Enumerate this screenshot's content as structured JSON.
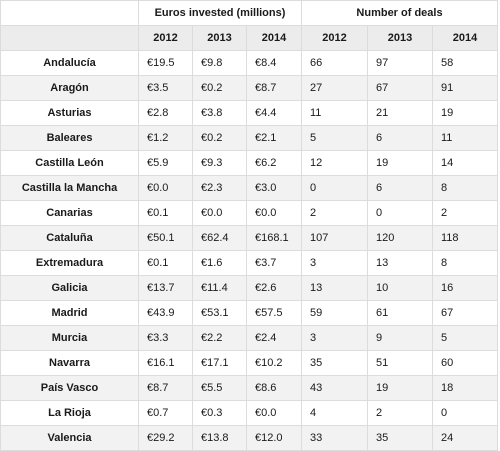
{
  "headers": {
    "euros": "Euros invested (millions)",
    "deals": "Number of deals",
    "years": [
      "2012",
      "2013",
      "2014",
      "2012",
      "2013",
      "2014"
    ]
  },
  "rows": [
    {
      "region": "Andalucía",
      "euros": [
        "€19.5",
        "€9.8",
        "€8.4"
      ],
      "deals": [
        "66",
        "97",
        "58"
      ]
    },
    {
      "region": "Aragón",
      "euros": [
        "€3.5",
        "€0.2",
        "€8.7"
      ],
      "deals": [
        "27",
        "67",
        "91"
      ]
    },
    {
      "region": "Asturias",
      "euros": [
        "€2.8",
        "€3.8",
        "€4.4"
      ],
      "deals": [
        "11",
        "21",
        "19"
      ]
    },
    {
      "region": "Baleares",
      "euros": [
        "€1.2",
        "€0.2",
        "€2.1"
      ],
      "deals": [
        "5",
        "6",
        "11"
      ]
    },
    {
      "region": "Castilla León",
      "euros": [
        "€5.9",
        "€9.3",
        "€6.2"
      ],
      "deals": [
        "12",
        "19",
        "14"
      ]
    },
    {
      "region": "Castilla la Mancha",
      "euros": [
        "€0.0",
        "€2.3",
        "€3.0"
      ],
      "deals": [
        "0",
        "6",
        "8"
      ]
    },
    {
      "region": "Canarias",
      "euros": [
        "€0.1",
        "€0.0",
        "€0.0"
      ],
      "deals": [
        "2",
        "0",
        "2"
      ]
    },
    {
      "region": "Cataluña",
      "euros": [
        "€50.1",
        "€62.4",
        "€168.1"
      ],
      "deals": [
        "107",
        "120",
        "118"
      ]
    },
    {
      "region": "Extremadura",
      "euros": [
        "€0.1",
        "€1.6",
        "€3.7"
      ],
      "deals": [
        "3",
        "13",
        "8"
      ]
    },
    {
      "region": "Galicia",
      "euros": [
        "€13.7",
        "€11.4",
        "€2.6"
      ],
      "deals": [
        "13",
        "10",
        "16"
      ]
    },
    {
      "region": "Madrid",
      "euros": [
        "€43.9",
        "€53.1",
        "€57.5"
      ],
      "deals": [
        "59",
        "61",
        "67"
      ]
    },
    {
      "region": "Murcia",
      "euros": [
        "€3.3",
        "€2.2",
        "€2.4"
      ],
      "deals": [
        "3",
        "9",
        "5"
      ]
    },
    {
      "region": "Navarra",
      "euros": [
        "€16.1",
        "€17.1",
        "€10.2"
      ],
      "deals": [
        "35",
        "51",
        "60"
      ]
    },
    {
      "region": "País Vasco",
      "euros": [
        "€8.7",
        "€5.5",
        "€8.6"
      ],
      "deals": [
        "43",
        "19",
        "18"
      ]
    },
    {
      "region": "La Rioja",
      "euros": [
        "€0.7",
        "€0.3",
        "€0.0"
      ],
      "deals": [
        "4",
        "2",
        "0"
      ]
    },
    {
      "region": "Valencia",
      "euros": [
        "€29.2",
        "€13.8",
        "€12.0"
      ],
      "deals": [
        "33",
        "35",
        "24"
      ]
    }
  ]
}
